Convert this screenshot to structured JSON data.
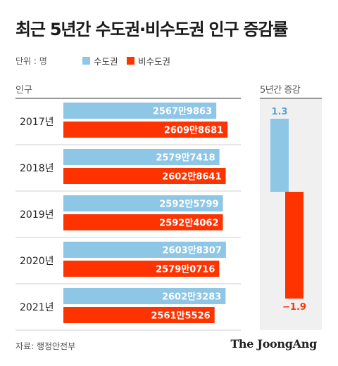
{
  "title": "최근 5년간 수도권·비수도권 인구 증감률",
  "unit_label": "단위 : 명",
  "left_header": "인구",
  "right_header": "5년간 증감",
  "source": "자료: 행정안전부",
  "brand": "The JoongAng",
  "colors": {
    "metro": "#8ec6e6",
    "non_metro": "#ff3300",
    "panel_bg": "#f0f0f0"
  },
  "chart_data": [
    {
      "type": "bar",
      "orientation": "horizontal",
      "categories": [
        "2017년",
        "2018년",
        "2019년",
        "2020년",
        "2021년"
      ],
      "series": [
        {
          "name": "수도권",
          "values": [
            25679863,
            25797418,
            25925799,
            26038307,
            26023283
          ],
          "labels": [
            "2567만9863",
            "2579만7418",
            "2592만5799",
            "2603만8307",
            "2602만3283"
          ]
        },
        {
          "name": "비수도권",
          "values": [
            26098681,
            26028641,
            25924062,
            25790716,
            25615526
          ],
          "labels": [
            "2609만8681",
            "2602만8641",
            "2592만4062",
            "2579만0716",
            "2561만5526"
          ]
        }
      ],
      "legend_position": "top-left"
    },
    {
      "type": "bar",
      "orientation": "vertical",
      "categories": [
        "수도권",
        "비수도권"
      ],
      "values": [
        1.3,
        -1.9
      ],
      "value_labels": [
        "1.3",
        "−1.9"
      ],
      "baseline": 0
    }
  ]
}
